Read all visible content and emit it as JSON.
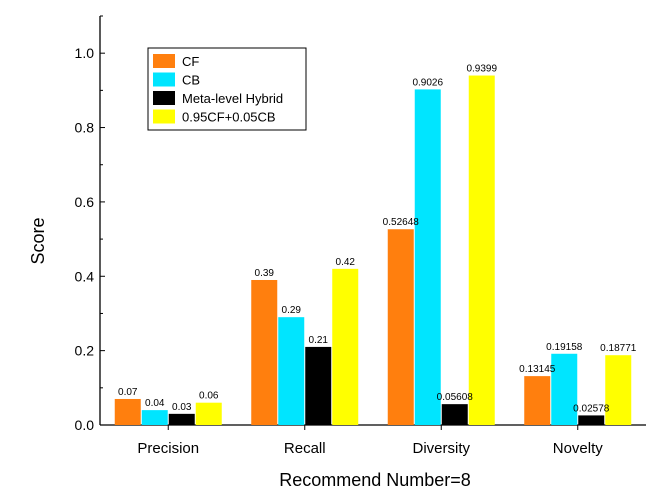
{
  "chart_data": {
    "type": "bar",
    "categories": [
      "Precision",
      "Recall",
      "Diversity",
      "Novelty"
    ],
    "series": [
      {
        "name": "CF",
        "color": "#ff7f0e",
        "values": [
          0.07,
          0.39,
          0.52648,
          0.13145
        ],
        "labels": [
          "0.07",
          "0.39",
          "0.52648",
          "0.13145"
        ]
      },
      {
        "name": "CB",
        "color": "#00e5ff",
        "values": [
          0.04,
          0.29,
          0.9026,
          0.19158
        ],
        "labels": [
          "0.04",
          "0.29",
          "0.9026",
          "0.19158"
        ]
      },
      {
        "name": "Meta-level Hybrid",
        "color": "#000000",
        "values": [
          0.03,
          0.21,
          0.05608,
          0.02578
        ],
        "labels": [
          "0.03",
          "0.21",
          "0.05608",
          "0.02578"
        ]
      },
      {
        "name": "0.95CF+0.05CB",
        "color": "#ffff00",
        "values": [
          0.06,
          0.42,
          0.9399,
          0.18771
        ],
        "labels": [
          "0.06",
          "0.42",
          "0.9399",
          "0.18771"
        ]
      }
    ],
    "xlabel": "Recommend Number=8",
    "ylabel": "Score",
    "ylim": [
      0,
      1.1
    ],
    "yticks": [
      0.0,
      0.2,
      0.4,
      0.6,
      0.8,
      1.0
    ],
    "ytick_labels": [
      "0.0",
      "0.2",
      "0.4",
      "0.6",
      "0.8",
      "1.0"
    ],
    "grid": false,
    "legend_position": "top-left"
  }
}
